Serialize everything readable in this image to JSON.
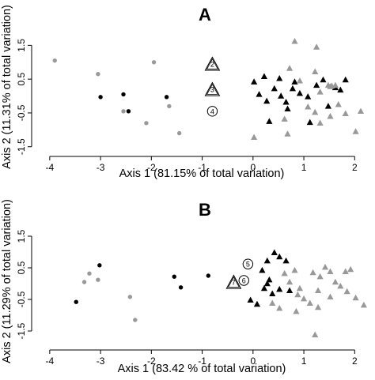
{
  "colors": {
    "black_group": "#000000",
    "grey_group": "#999999",
    "background": "#ffffff",
    "marker_label_fill": "#ffffff"
  },
  "chart_data": [
    {
      "type": "scatter",
      "panel": "A",
      "xlabel": "Axis 1 (81.15% of total variation)",
      "ylabel": "Axis 2 (11.31% of total variation)",
      "xlim": [
        -4.2,
        2.4
      ],
      "ylim": [
        -1.6,
        2.0
      ],
      "xticks": [
        -4,
        -3,
        -2,
        -1,
        0,
        1,
        2
      ],
      "yticks": [
        1.5,
        0.5,
        -0.5,
        -1.5
      ],
      "ytick_labels": [
        "1.5",
        "0.5",
        "-0.5",
        "-1.5"
      ],
      "grid": false,
      "series": [
        {
          "marker": "circle",
          "color": "black",
          "points": [
            [
              -3.0,
              -0.03
            ],
            [
              -2.55,
              0.05
            ],
            [
              -2.45,
              -0.45
            ],
            [
              -1.7,
              -0.03
            ]
          ]
        },
        {
          "marker": "circle",
          "color": "grey",
          "points": [
            [
              -3.9,
              1.05
            ],
            [
              -3.05,
              0.65
            ],
            [
              -1.95,
              1.0
            ],
            [
              -2.55,
              -0.45
            ],
            [
              -2.1,
              -0.8
            ],
            [
              -1.65,
              -0.3
            ],
            [
              -1.45,
              -1.1
            ]
          ]
        },
        {
          "marker": "triangle",
          "color": "black",
          "points": [
            [
              0.02,
              0.42
            ],
            [
              0.12,
              0.05
            ],
            [
              0.22,
              0.58
            ],
            [
              0.27,
              -0.15
            ],
            [
              0.42,
              0.22
            ],
            [
              0.52,
              0.52
            ],
            [
              0.55,
              0.0
            ],
            [
              0.65,
              -0.18
            ],
            [
              0.78,
              0.22
            ],
            [
              0.82,
              0.42
            ],
            [
              0.92,
              0.08
            ],
            [
              1.08,
              -0.02
            ],
            [
              1.25,
              0.32
            ],
            [
              1.38,
              0.48
            ],
            [
              1.48,
              -0.3
            ],
            [
              1.62,
              0.25
            ],
            [
              1.72,
              0.18
            ],
            [
              1.82,
              0.48
            ],
            [
              0.32,
              -0.75
            ],
            [
              0.68,
              -0.38
            ],
            [
              1.12,
              -0.78
            ]
          ]
        },
        {
          "marker": "triangle",
          "color": "grey",
          "points": [
            [
              0.82,
              1.62
            ],
            [
              1.25,
              1.45
            ],
            [
              0.72,
              0.82
            ],
            [
              1.22,
              0.72
            ],
            [
              0.92,
              0.45
            ],
            [
              1.52,
              0.28
            ],
            [
              1.62,
              0.32
            ],
            [
              1.32,
              0.12
            ],
            [
              1.48,
              0.32
            ],
            [
              1.68,
              -0.25
            ],
            [
              1.08,
              -0.32
            ],
            [
              1.22,
              -0.48
            ],
            [
              1.52,
              -0.6
            ],
            [
              0.62,
              -0.68
            ],
            [
              1.32,
              -0.8
            ],
            [
              2.12,
              -0.45
            ],
            [
              2.02,
              -1.05
            ],
            [
              0.02,
              -1.22
            ],
            [
              0.68,
              -1.12
            ],
            [
              1.82,
              -0.52
            ],
            [
              1.55,
              0.3
            ]
          ]
        }
      ],
      "annotations": [
        {
          "label": "2",
          "shape": "triangle",
          "x": -0.8,
          "y": 0.95
        },
        {
          "label": "3",
          "shape": "triangle",
          "x": -0.8,
          "y": 0.2
        },
        {
          "label": "4",
          "shape": "circle",
          "x": -0.8,
          "y": -0.45
        }
      ]
    },
    {
      "type": "scatter",
      "panel": "B",
      "xlabel": "Axis 1 (83.42 % of total variation)",
      "ylabel": "Axis 2 (11.29% of total variation)",
      "xlim": [
        -4.2,
        2.4
      ],
      "ylim": [
        -1.9,
        1.9
      ],
      "xticks": [
        -4,
        -3,
        -2,
        -1,
        0,
        1,
        2
      ],
      "yticks": [
        1.5,
        0.5,
        -0.5,
        -1.5
      ],
      "ytick_labels": [
        "1.5",
        "0.5",
        "-0.5",
        "-1.5"
      ],
      "grid": false,
      "series": [
        {
          "marker": "circle",
          "color": "black",
          "points": [
            [
              -3.02,
              0.58
            ],
            [
              -3.48,
              -0.58
            ],
            [
              -1.55,
              0.22
            ],
            [
              -1.42,
              -0.12
            ],
            [
              -0.88,
              0.25
            ]
          ]
        },
        {
          "marker": "circle",
          "color": "grey",
          "points": [
            [
              -3.32,
              0.05
            ],
            [
              -3.22,
              0.32
            ],
            [
              -3.05,
              0.12
            ],
            [
              -2.42,
              -0.42
            ],
            [
              -2.32,
              -1.15
            ]
          ]
        },
        {
          "marker": "triangle",
          "color": "black",
          "points": [
            [
              0.28,
              0.72
            ],
            [
              0.42,
              0.98
            ],
            [
              0.52,
              0.85
            ],
            [
              0.65,
              0.72
            ],
            [
              0.18,
              0.42
            ],
            [
              -0.05,
              -0.52
            ],
            [
              0.08,
              -0.65
            ],
            [
              0.22,
              -0.15
            ],
            [
              0.32,
              0.12
            ],
            [
              0.38,
              -0.32
            ],
            [
              0.52,
              -0.18
            ],
            [
              0.72,
              -0.22
            ],
            [
              0.28,
              0.0
            ]
          ]
        },
        {
          "marker": "triangle",
          "color": "grey",
          "points": [
            [
              0.62,
              0.32
            ],
            [
              0.82,
              0.42
            ],
            [
              1.18,
              0.35
            ],
            [
              1.32,
              0.22
            ],
            [
              1.52,
              0.38
            ],
            [
              1.82,
              0.38
            ],
            [
              1.92,
              0.45
            ],
            [
              1.62,
              0.05
            ],
            [
              1.72,
              -0.08
            ],
            [
              1.28,
              -0.22
            ],
            [
              0.88,
              -0.35
            ],
            [
              1.52,
              -0.42
            ],
            [
              2.02,
              -0.45
            ],
            [
              1.12,
              -0.62
            ],
            [
              1.28,
              -0.75
            ],
            [
              0.52,
              -0.78
            ],
            [
              0.85,
              -0.88
            ],
            [
              0.38,
              -0.62
            ],
            [
              1.22,
              -1.62
            ],
            [
              0.92,
              -0.15
            ],
            [
              1.42,
              0.52
            ],
            [
              0.72,
              0.05
            ],
            [
              1.0,
              -0.48
            ],
            [
              2.18,
              -0.68
            ],
            [
              1.85,
              -0.25
            ]
          ]
        }
      ],
      "annotations": [
        {
          "label": "5",
          "shape": "circle",
          "x": -0.1,
          "y": 0.62
        },
        {
          "label": "7",
          "shape": "triangle",
          "x": -0.38,
          "y": 0.05
        },
        {
          "label": "6",
          "shape": "circle",
          "x": -0.18,
          "y": 0.1
        }
      ]
    }
  ]
}
